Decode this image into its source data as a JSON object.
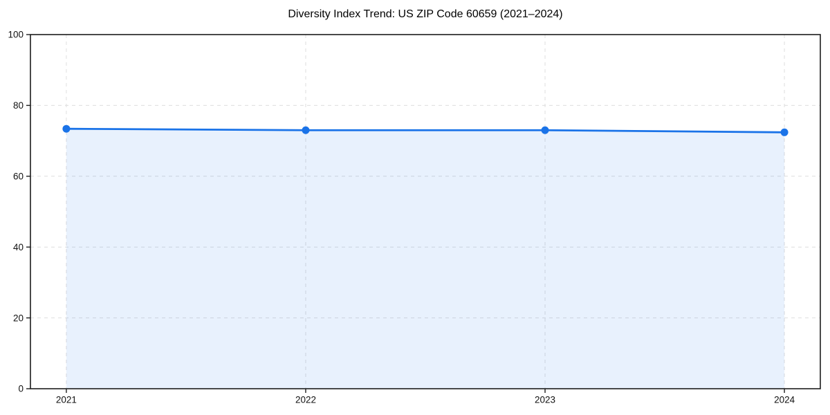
{
  "chart_data": {
    "type": "area",
    "title": "Diversity Index Trend: US ZIP Code 60659 (2021–2024)",
    "categories": [
      "2021",
      "2022",
      "2023",
      "2024"
    ],
    "series": [
      {
        "name": "Diversity Index",
        "values": [
          73.4,
          73.0,
          73.0,
          72.4
        ]
      }
    ],
    "xlabel": "",
    "ylabel": "",
    "ylim": [
      0,
      100
    ],
    "yticks": [
      0,
      20,
      40,
      60,
      80,
      100
    ],
    "grid": "dashed gridlines on both axes at every tick",
    "legend": "none",
    "marker": "circle",
    "colors": {
      "line": "#1a73e8",
      "fill": "#1a73e8",
      "fill_opacity": 0.1,
      "grid": "#dedede",
      "spine": "#1c1c1c",
      "tick_text": "#111111",
      "title_text": "#000000",
      "background": "#ffffff"
    }
  }
}
